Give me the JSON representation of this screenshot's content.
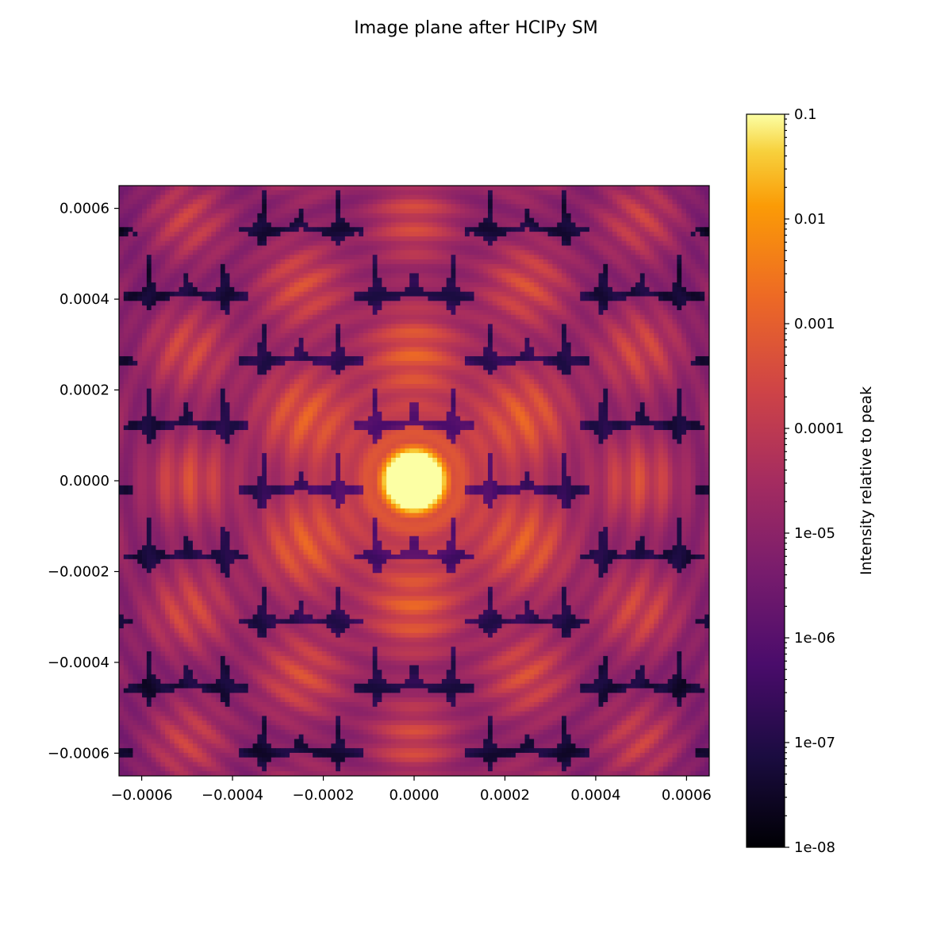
{
  "chart_data": {
    "type": "heatmap",
    "title": "Image plane after HCIPy SM",
    "xlabel": "",
    "ylabel": "",
    "xlim": [
      -0.00065,
      0.00065
    ],
    "ylim": [
      -0.00065,
      0.00065
    ],
    "xticks": [
      -0.0006,
      -0.0004,
      -0.0002,
      0.0,
      0.0002,
      0.0004,
      0.0006
    ],
    "xtick_labels": [
      "−0.0006",
      "−0.0004",
      "−0.0002",
      "0.0000",
      "0.0002",
      "0.0004",
      "0.0006"
    ],
    "yticks": [
      0.0006,
      0.0004,
      0.0002,
      0.0,
      -0.0002,
      -0.0004,
      -0.0006
    ],
    "ytick_labels": [
      "0.0006",
      "0.0004",
      "0.0002",
      "0.0000",
      "−0.0002",
      "−0.0004",
      "−0.0006"
    ],
    "grid_cells": [
      128,
      128
    ],
    "colormap": "inferno",
    "colorbar": {
      "label": "Intensity relative to peak",
      "scale": "log",
      "vmin": 1e-08,
      "vmax": 0.1,
      "ticks": [
        0.1,
        0.01,
        0.001,
        0.0001,
        1e-05,
        1e-06,
        1e-07,
        1e-08
      ],
      "tick_labels": [
        "0.1",
        "0.01",
        "0.001",
        "0.0001",
        "1e-05",
        "1e-06",
        "1e-07",
        "1e-08"
      ]
    },
    "pattern": {
      "description_units": "data units",
      "central_peak": {
        "x": 0.0,
        "y": 0.0,
        "value": 0.1
      },
      "inner_ring_peaks_radius": 0.00024,
      "inner_ring_peak_value": 0.003,
      "outer_grid_peaks_value": 0.0005,
      "background_min": 1e-08
    }
  },
  "colors": {
    "background": "#ffffff",
    "axes": "#000000"
  }
}
